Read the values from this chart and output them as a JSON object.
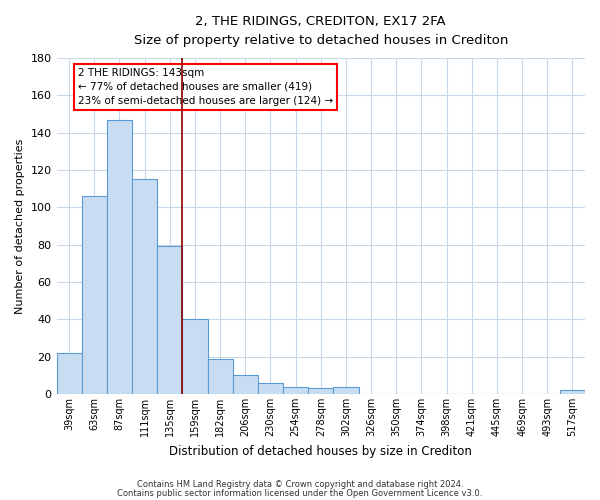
{
  "title": "2, THE RIDINGS, CREDITON, EX17 2FA",
  "subtitle": "Size of property relative to detached houses in Crediton",
  "xlabel": "Distribution of detached houses by size in Crediton",
  "ylabel": "Number of detached properties",
  "bar_labels": [
    "39sqm",
    "63sqm",
    "87sqm",
    "111sqm",
    "135sqm",
    "159sqm",
    "182sqm",
    "206sqm",
    "230sqm",
    "254sqm",
    "278sqm",
    "302sqm",
    "326sqm",
    "350sqm",
    "374sqm",
    "398sqm",
    "421sqm",
    "445sqm",
    "469sqm",
    "493sqm",
    "517sqm"
  ],
  "bar_values": [
    22,
    106,
    147,
    115,
    79,
    40,
    19,
    10,
    6,
    4,
    3,
    4,
    0,
    0,
    0,
    0,
    0,
    0,
    0,
    0,
    2
  ],
  "bar_color": "#c9ddf2",
  "bar_edge_color": "#5b9bd5",
  "red_line_bar_index": 4,
  "ylim": [
    0,
    180
  ],
  "yticks": [
    0,
    20,
    40,
    60,
    80,
    100,
    120,
    140,
    160,
    180
  ],
  "annotation_title": "2 THE RIDINGS: 143sqm",
  "annotation_line1": "← 77% of detached houses are smaller (419)",
  "annotation_line2": "23% of semi-detached houses are larger (124) →",
  "footer1": "Contains HM Land Registry data © Crown copyright and database right 2024.",
  "footer2": "Contains public sector information licensed under the Open Government Licence v3.0.",
  "background_color": "#ffffff",
  "grid_color": "#c8d8e8"
}
